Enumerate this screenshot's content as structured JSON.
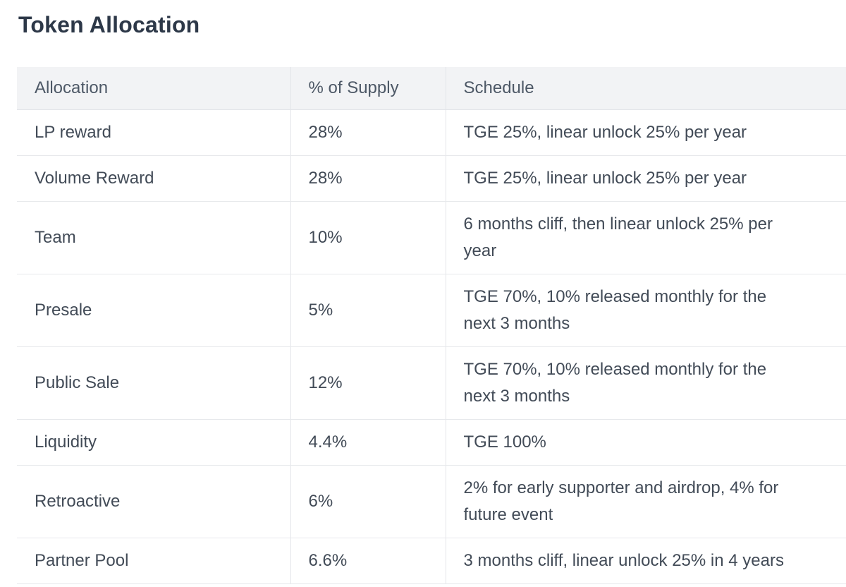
{
  "page": {
    "title": "Token Allocation"
  },
  "colors": {
    "title_text": "#2d3848",
    "header_background": "#f2f3f5",
    "header_text": "#4d5866",
    "body_text": "#424b57",
    "row_border": "#e7e9ec",
    "column_border": "#e3e5e9",
    "page_background": "#ffffff"
  },
  "table": {
    "columns": [
      "Allocation",
      "% of Supply",
      "Schedule"
    ],
    "rows": [
      {
        "allocation": "LP reward",
        "supply": "28%",
        "schedule": "TGE 25%, linear unlock 25% per year"
      },
      {
        "allocation": "Volume Reward",
        "supply": "28%",
        "schedule": "TGE 25%, linear unlock 25% per year"
      },
      {
        "allocation": "Team",
        "supply": "10%",
        "schedule": "6 months cliff, then linear unlock 25% per year"
      },
      {
        "allocation": "Presale",
        "supply": "5%",
        "schedule": "TGE 70%, 10% released monthly for the next 3 months"
      },
      {
        "allocation": "Public Sale",
        "supply": "12%",
        "schedule": "TGE 70%, 10% released monthly for the next 3 months"
      },
      {
        "allocation": "Liquidity",
        "supply": "4.4%",
        "schedule": "TGE 100%"
      },
      {
        "allocation": "Retroactive",
        "supply": "6%",
        "schedule": "2% for early supporter and airdrop, 4% for future event"
      },
      {
        "allocation": "Partner Pool",
        "supply": "6.6%",
        "schedule": "3 months cliff, linear unlock 25% in 4 years"
      }
    ]
  }
}
